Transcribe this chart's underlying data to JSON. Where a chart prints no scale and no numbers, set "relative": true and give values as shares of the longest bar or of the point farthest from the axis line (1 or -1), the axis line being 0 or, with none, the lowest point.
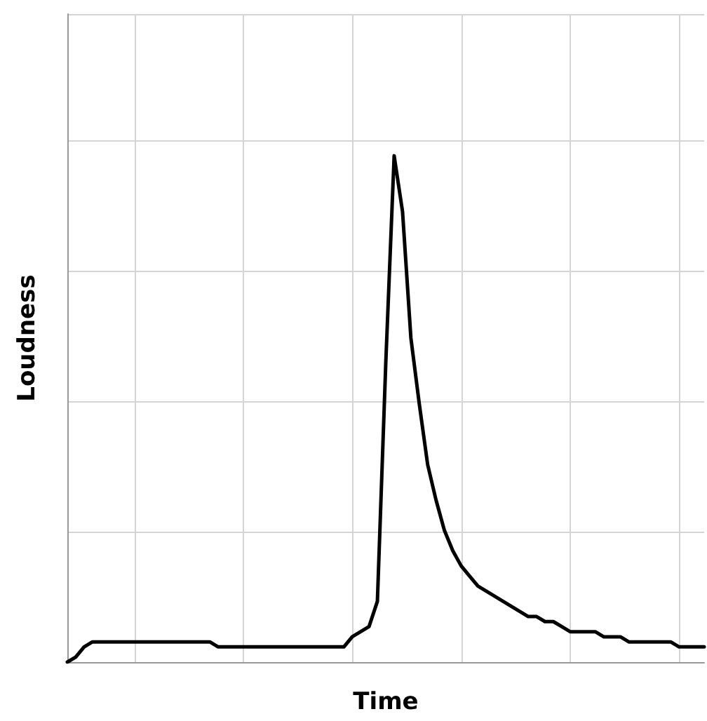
{
  "chart_data": {
    "type": "line",
    "xlabel": "Time",
    "ylabel": "Loudness",
    "relative": true,
    "grid": true,
    "line_style": "solid",
    "categories": [
      null,
      null,
      null,
      null,
      null,
      null,
      null,
      null,
      null,
      null,
      null,
      null,
      null,
      null,
      null,
      null,
      null,
      null,
      null,
      null,
      null,
      null,
      null,
      null,
      null,
      null,
      null,
      null,
      null,
      null,
      null,
      null,
      null,
      null,
      null,
      null,
      null,
      null,
      null,
      null,
      null,
      null,
      null,
      null,
      null,
      null,
      null,
      null,
      null,
      null,
      null,
      null,
      null,
      null,
      null,
      null,
      null,
      null,
      null,
      null,
      null,
      null,
      null,
      null,
      null,
      null,
      null,
      null,
      null,
      null,
      null,
      null,
      null,
      null,
      null,
      null,
      null
    ],
    "series": [
      {
        "color": "#000000",
        "values": [
          0,
          0.01,
          0.03,
          0.04,
          0.04,
          0.04,
          0.04,
          0.04,
          0.04,
          0.04,
          0.04,
          0.04,
          0.04,
          0.04,
          0.04,
          0.04,
          0.04,
          0.04,
          0.03,
          0.03,
          0.03,
          0.03,
          0.03,
          0.03,
          0.03,
          0.03,
          0.03,
          0.03,
          0.03,
          0.03,
          0.03,
          0.03,
          0.03,
          0.03,
          0.05,
          0.06,
          0.07,
          0.12,
          0.59,
          1,
          0.89,
          0.64,
          0.51,
          0.39,
          0.32,
          0.26,
          0.22,
          0.19,
          0.17,
          0.15,
          0.14,
          0.13,
          0.12,
          0.11,
          0.1,
          0.09,
          0.09,
          0.08,
          0.08,
          0.07,
          0.06,
          0.06,
          0.06,
          0.06,
          0.05,
          0.05,
          0.05,
          0.04,
          0.04,
          0.04,
          0.04,
          0.04,
          0.04,
          0.03,
          0.03,
          0.03,
          0.03
        ]
      }
    ]
  }
}
